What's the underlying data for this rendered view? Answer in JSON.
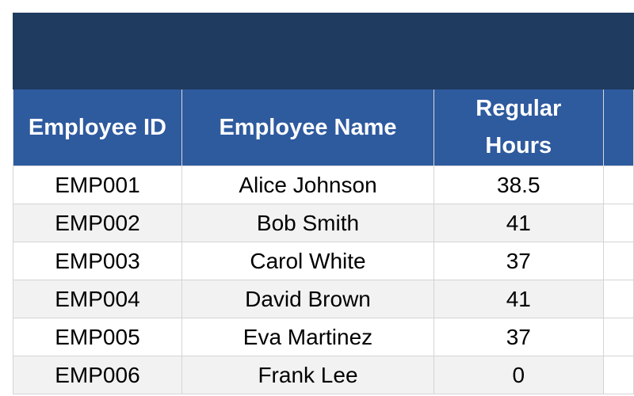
{
  "table": {
    "columns": [
      "Employee ID",
      "Employee Name",
      "Regular Hours",
      ""
    ],
    "rows": [
      {
        "id": "EMP001",
        "name": "Alice Johnson",
        "hours": "38.5"
      },
      {
        "id": "EMP002",
        "name": "Bob Smith",
        "hours": "41"
      },
      {
        "id": "EMP003",
        "name": "Carol White",
        "hours": "37"
      },
      {
        "id": "EMP004",
        "name": "David Brown",
        "hours": "41"
      },
      {
        "id": "EMP005",
        "name": "Eva Martinez",
        "hours": "37"
      },
      {
        "id": "EMP006",
        "name": "Frank Lee",
        "hours": "0"
      }
    ]
  },
  "colors": {
    "banner": "#1f3b60",
    "header": "#2e5a9e",
    "stripe": "#f2f2f2"
  }
}
